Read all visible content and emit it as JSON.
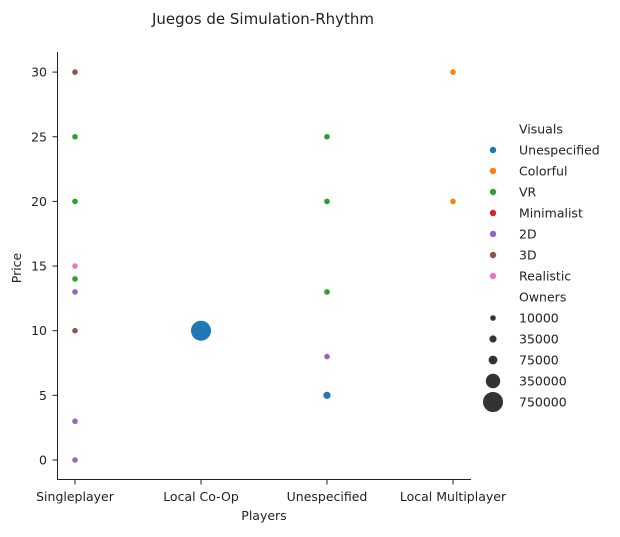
{
  "chart_data": {
    "type": "scatter",
    "title": "Juegos de Simulation-Rhythm",
    "xlabel": "Players",
    "ylabel": "Price",
    "categories": [
      "Singleplayer",
      "Local Co-Op",
      "Unespecified",
      "Local Multiplayer"
    ],
    "yticks": [
      0,
      5,
      10,
      15,
      20,
      25,
      30
    ],
    "ylim": [
      -1.5,
      31.5
    ],
    "grid": false,
    "legend_position": "right",
    "hue_title": "Visuals",
    "size_title": "Owners",
    "hue_levels": [
      {
        "name": "Unespecified",
        "color": "#1f77b4"
      },
      {
        "name": "Colorful",
        "color": "#ff7f0e"
      },
      {
        "name": "VR",
        "color": "#2ca02c"
      },
      {
        "name": "Minimalist",
        "color": "#d62728"
      },
      {
        "name": "2D",
        "color": "#9467bd"
      },
      {
        "name": "3D",
        "color": "#8c564b"
      },
      {
        "name": "Realistic",
        "color": "#e377c2"
      }
    ],
    "size_levels": [
      "10000",
      "35000",
      "75000",
      "350000",
      "750000"
    ],
    "points": [
      {
        "x": "Singleplayer",
        "y": 30,
        "visuals": "3D",
        "owners": "10000"
      },
      {
        "x": "Singleplayer",
        "y": 25,
        "visuals": "VR",
        "owners": "10000"
      },
      {
        "x": "Singleplayer",
        "y": 20,
        "visuals": "VR",
        "owners": "10000"
      },
      {
        "x": "Singleplayer",
        "y": 15,
        "visuals": "Realistic",
        "owners": "10000"
      },
      {
        "x": "Singleplayer",
        "y": 14,
        "visuals": "VR",
        "owners": "10000"
      },
      {
        "x": "Singleplayer",
        "y": 13,
        "visuals": "2D",
        "owners": "10000"
      },
      {
        "x": "Singleplayer",
        "y": 10,
        "visuals": "3D",
        "owners": "10000"
      },
      {
        "x": "Singleplayer",
        "y": 3,
        "visuals": "2D",
        "owners": "10000"
      },
      {
        "x": "Singleplayer",
        "y": 0,
        "visuals": "2D",
        "owners": "10000"
      },
      {
        "x": "Local Co-Op",
        "y": 10,
        "visuals": "Unespecified",
        "owners": "750000"
      },
      {
        "x": "Unespecified",
        "y": 25,
        "visuals": "VR",
        "owners": "10000"
      },
      {
        "x": "Unespecified",
        "y": 20,
        "visuals": "VR",
        "owners": "10000"
      },
      {
        "x": "Unespecified",
        "y": 13,
        "visuals": "VR",
        "owners": "10000"
      },
      {
        "x": "Unespecified",
        "y": 8,
        "visuals": "2D",
        "owners": "10000"
      },
      {
        "x": "Unespecified",
        "y": 5,
        "visuals": "Unespecified",
        "owners": "35000"
      },
      {
        "x": "Local Multiplayer",
        "y": 30,
        "visuals": "Colorful",
        "owners": "10000"
      },
      {
        "x": "Local Multiplayer",
        "y": 20,
        "visuals": "Colorful",
        "owners": "10000"
      }
    ]
  }
}
